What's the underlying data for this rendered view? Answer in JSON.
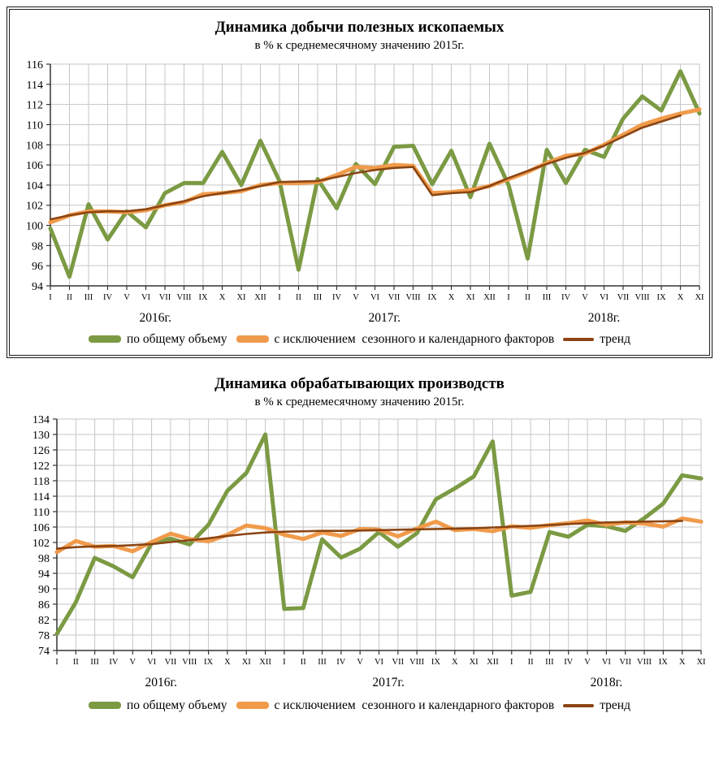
{
  "colors": {
    "grid": "#c6c6c6",
    "axis": "#333333",
    "frame": "#1a1a1a",
    "green": "#7b9a43",
    "orange": "#f09b4b",
    "brown": "#8b4513"
  },
  "charts": [
    {
      "title": "Динамика добычи полезных ископаемых",
      "subtitle": "в % к среднемесячному значению 2015г.",
      "framed": true,
      "chart_data": {
        "type": "line",
        "title": "Динамика добычи полезных ископаемых",
        "subtitle": "в % к среднемесячному значению 2015г.",
        "ylim": [
          94,
          116
        ],
        "ystep": 2,
        "grid": true,
        "legend_position": "bottom",
        "categories": [
          "I",
          "II",
          "III",
          "IV",
          "V",
          "VI",
          "VII",
          "VIII",
          "IX",
          "X",
          "XI",
          "XII",
          "I",
          "II",
          "III",
          "IV",
          "V",
          "VI",
          "VII",
          "VIII",
          "IX",
          "X",
          "XI",
          "XII",
          "I",
          "II",
          "III",
          "IV",
          "V",
          "VI",
          "VII",
          "VIII",
          "IX",
          "X",
          "XI"
        ],
        "year_groups": [
          {
            "label": "2016г.",
            "from": 0,
            "to": 11
          },
          {
            "label": "2017г.",
            "from": 12,
            "to": 23
          },
          {
            "label": "2018г.",
            "from": 24,
            "to": 34
          }
        ],
        "series": [
          {
            "name": "по общему объему",
            "color": "#7b9a43",
            "width": 5,
            "values": [
              99.7,
              94.9,
              102.1,
              98.6,
              101.4,
              99.8,
              103.2,
              104.2,
              104.2,
              107.3,
              104.0,
              108.4,
              104.4,
              95.6,
              104.6,
              101.7,
              106.1,
              104.1,
              107.8,
              107.9,
              104.1,
              107.4,
              102.8,
              108.1,
              104.0,
              96.7,
              107.5,
              104.2,
              107.5,
              106.8,
              110.6,
              112.8,
              111.4,
              115.3,
              111.1
            ]
          },
          {
            "name": "с исключением  сезонного и календарного факторов",
            "color": "#f09b4b",
            "width": 5,
            "values": [
              100.3,
              101.0,
              101.4,
              101.4,
              101.3,
              101.5,
              102.0,
              102.3,
              103.1,
              103.2,
              103.4,
              104.0,
              104.2,
              104.2,
              104.3,
              105.0,
              105.8,
              105.7,
              106.0,
              105.9,
              103.2,
              103.3,
              103.5,
              103.9,
              104.6,
              105.3,
              106.2,
              106.9,
              107.1,
              108.0,
              109.0,
              110.0,
              110.6,
              111.1,
              111.5
            ]
          },
          {
            "name": "тренд",
            "color": "#8b4513",
            "width": 2.6,
            "values": [
              100.6,
              101.0,
              101.3,
              101.4,
              101.4,
              101.6,
              102.0,
              102.4,
              102.9,
              103.2,
              103.5,
              103.9,
              104.3,
              104.35,
              104.4,
              104.8,
              105.2,
              105.5,
              105.7,
              105.8,
              103.0,
              103.2,
              103.3,
              103.9,
              104.7,
              105.4,
              106.1,
              106.7,
              107.2,
              107.9,
              108.8,
              109.7,
              110.3,
              110.9
            ]
          }
        ]
      }
    },
    {
      "title": "Динамика обрабатывающих производств",
      "subtitle": "в % к среднемесячному значению 2015г.",
      "framed": false,
      "chart_data": {
        "type": "line",
        "title": "Динамика обрабатывающих производств",
        "subtitle": "в % к среднемесячному значению 2015г.",
        "ylim": [
          74,
          134
        ],
        "ystep": 4,
        "grid": true,
        "legend_position": "bottom",
        "categories": [
          "I",
          "II",
          "III",
          "IV",
          "V",
          "VI",
          "VII",
          "VIII",
          "IX",
          "X",
          "XI",
          "XII",
          "I",
          "II",
          "III",
          "IV",
          "V",
          "VI",
          "VII",
          "VIII",
          "IX",
          "X",
          "XI",
          "XII",
          "I",
          "II",
          "III",
          "IV",
          "V",
          "VI",
          "VII",
          "VIII",
          "IX",
          "X",
          "XI"
        ],
        "year_groups": [
          {
            "label": "2016г.",
            "from": 0,
            "to": 11
          },
          {
            "label": "2017г.",
            "from": 12,
            "to": 23
          },
          {
            "label": "2018г.",
            "from": 24,
            "to": 34
          }
        ],
        "series": [
          {
            "name": "по общему объему",
            "color": "#7b9a43",
            "width": 5,
            "values": [
              78.3,
              86.5,
              98.0,
              95.8,
              93.0,
              101.8,
              103.0,
              101.5,
              106.6,
              115.4,
              120.0,
              130.0,
              84.8,
              85.0,
              102.8,
              98.1,
              100.4,
              104.7,
              100.9,
              104.4,
              113.2,
              116.0,
              119.1,
              128.2,
              88.2,
              89.2,
              104.7,
              103.5,
              106.6,
              106.2,
              105.0,
              108.3,
              112.1,
              119.4,
              118.6
            ]
          },
          {
            "name": "с исключением  сезонного и календарного факторов",
            "color": "#f09b4b",
            "width": 5,
            "values": [
              99.5,
              102.4,
              100.9,
              101.1,
              99.7,
              102.1,
              104.3,
              102.9,
              102.3,
              104.0,
              106.4,
              105.7,
              104.0,
              102.9,
              104.6,
              103.7,
              105.5,
              105.3,
              103.6,
              105.6,
              107.4,
              105.2,
              105.5,
              104.9,
              106.2,
              105.8,
              106.5,
              107.0,
              107.7,
              106.6,
              107.2,
              106.9,
              106.1,
              108.2,
              107.4
            ]
          },
          {
            "name": "тренд",
            "color": "#8b4513",
            "width": 2.6,
            "values": [
              100.4,
              100.8,
              101.0,
              101.1,
              101.3,
              101.6,
              102.1,
              102.6,
              103.1,
              103.7,
              104.2,
              104.6,
              104.8,
              104.9,
              105.0,
              105.0,
              105.1,
              105.2,
              105.3,
              105.4,
              105.5,
              105.6,
              105.7,
              105.9,
              106.1,
              106.3,
              106.5,
              106.8,
              107.0,
              107.2,
              107.3,
              107.4,
              107.5,
              107.6
            ]
          }
        ]
      }
    }
  ]
}
